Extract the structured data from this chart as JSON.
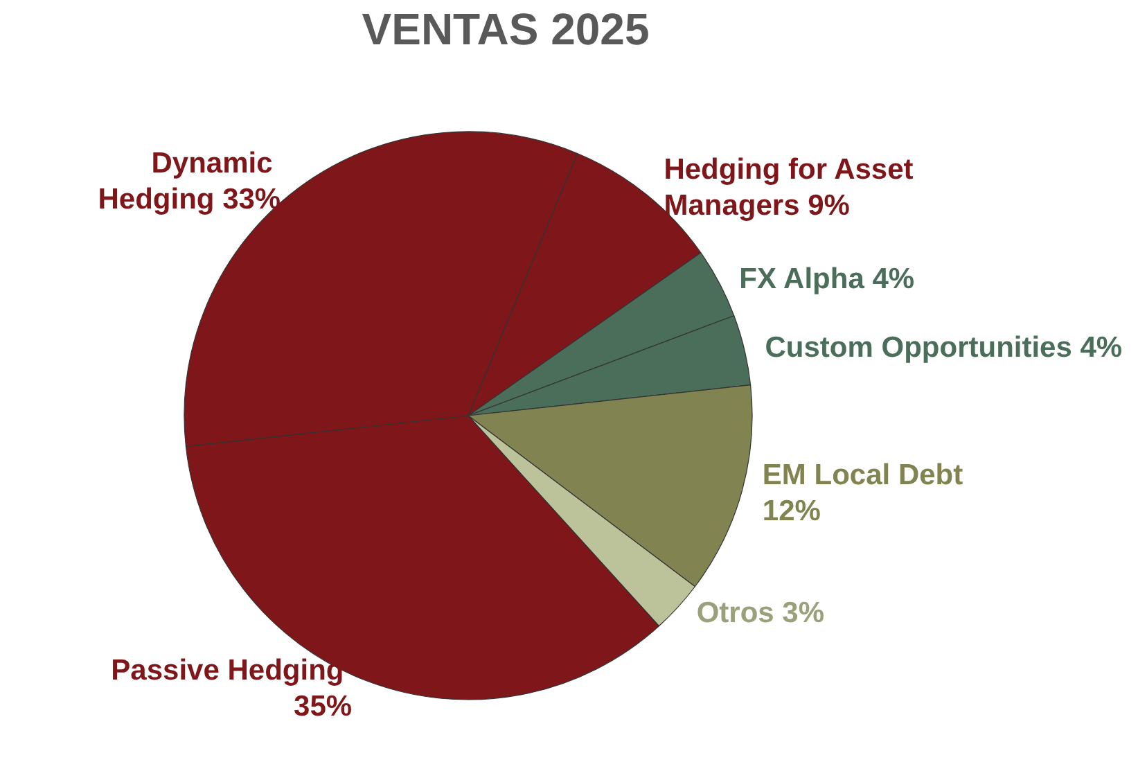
{
  "chart_data": {
    "type": "pie",
    "title": "VENTAS 2025",
    "categories": [
      "Hedging for Asset Managers",
      "FX Alpha",
      "Custom Opportunities",
      "EM Local Debt",
      "Otros",
      "Passive Hedging",
      "Dynamic Hedging"
    ],
    "values": [
      9,
      4,
      4,
      12,
      3,
      35,
      33
    ],
    "colors": [
      "#7f1619",
      "#4a6e5a",
      "#4a6e5a",
      "#818350",
      "#bcc29a",
      "#7f1619",
      "#7f1619"
    ],
    "value_labels": [
      "9%",
      "4%",
      "4%",
      "12%",
      "3%",
      "35%",
      "33%"
    ],
    "legend": false
  }
}
